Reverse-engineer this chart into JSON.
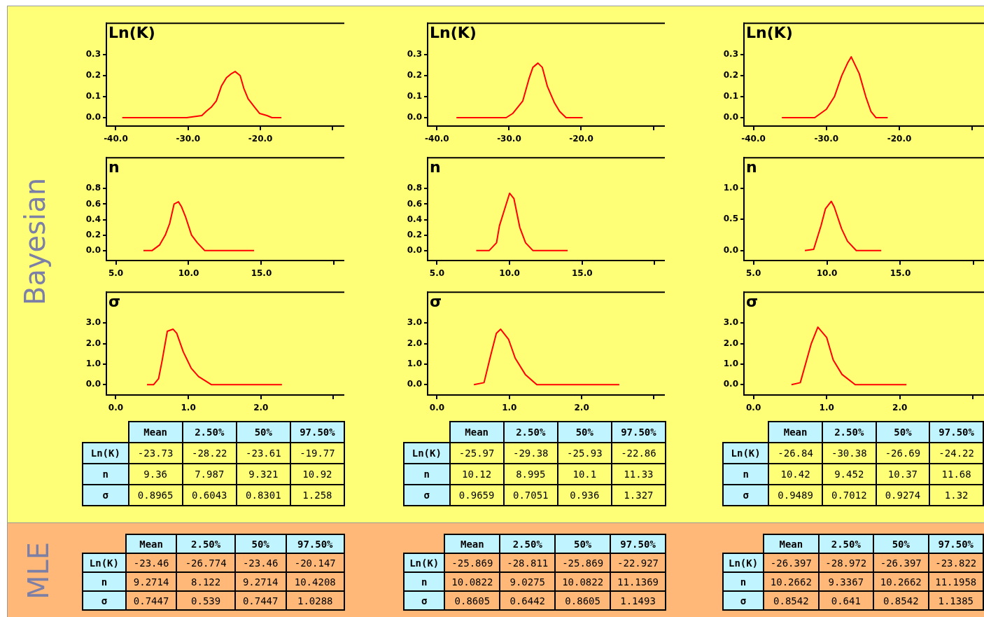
{
  "chart_data": [
    {
      "type": "other",
      "title": "Bayesian"
    },
    {
      "type": "line",
      "title": "Ln(K)",
      "color": "#ff0000",
      "marker": "none",
      "x": [
        -39.1,
        -30.2,
        -28.1,
        -27.5,
        -26.8,
        -26.1,
        -25.4,
        -24.7,
        -24.0,
        -23.5,
        -22.8,
        -22.3,
        -21.7,
        -20.8,
        -20.1,
        -19.1,
        -18.4,
        -17.1
      ],
      "values": [
        0,
        0,
        0.01,
        0.03,
        0.05,
        0.08,
        0.15,
        0.19,
        0.21,
        0.22,
        0.2,
        0.14,
        0.09,
        0.05,
        0.02,
        0.01,
        0,
        0
      ],
      "xlim": [
        -41.3,
        -8.4
      ],
      "ylim": [
        -0.04,
        0.45
      ],
      "xticks": [
        {
          "value": -40,
          "label": "-40.0"
        },
        {
          "value": -30,
          "label": "-30.0"
        },
        {
          "value": -20,
          "label": "-20.0"
        },
        {
          "value": -10,
          "label": null
        }
      ],
      "yticks": [
        {
          "value": 0,
          "label": "0.0"
        },
        {
          "value": 0.1,
          "label": "0.1"
        },
        {
          "value": 0.2,
          "label": "0.2"
        },
        {
          "value": 0.3,
          "label": "0.3"
        }
      ],
      "grid": false
    },
    {
      "type": "line",
      "title": "Ln(K)",
      "color": "#ff0000",
      "marker": "none",
      "x": [
        -37.3,
        -30.4,
        -29.5,
        -28.1,
        -27.2,
        -26.7,
        -26.0,
        -25.4,
        -24.7,
        -23.7,
        -23.0,
        -22.1,
        -19.8
      ],
      "values": [
        0,
        0,
        0.02,
        0.08,
        0.19,
        0.24,
        0.26,
        0.24,
        0.15,
        0.07,
        0.03,
        0,
        0
      ],
      "xlim": [
        -41.3,
        -8.4
      ],
      "ylim": [
        -0.04,
        0.45
      ],
      "xticks": [
        {
          "value": -40,
          "label": "-40.0"
        },
        {
          "value": -30,
          "label": "-30.0"
        },
        {
          "value": -20,
          "label": "-20.0"
        },
        {
          "value": -10,
          "label": null
        }
      ],
      "yticks": [
        {
          "value": 0,
          "label": "0.0"
        },
        {
          "value": 0.1,
          "label": "0.1"
        },
        {
          "value": 0.2,
          "label": "0.2"
        },
        {
          "value": 0.3,
          "label": "0.3"
        }
      ],
      "grid": false
    },
    {
      "type": "line",
      "title": "Ln(K)",
      "color": "#ff0000",
      "marker": "none",
      "x": [
        -36.1,
        -31.6,
        -30.0,
        -28.9,
        -27.9,
        -27.1,
        -26.6,
        -25.5,
        -24.6,
        -23.9,
        -23.2,
        -21.6
      ],
      "values": [
        0,
        0,
        0.04,
        0.1,
        0.2,
        0.26,
        0.29,
        0.21,
        0.1,
        0.03,
        0,
        0
      ],
      "xlim": [
        -41.3,
        -8.4
      ],
      "ylim": [
        -0.04,
        0.45
      ],
      "xticks": [
        {
          "value": -40,
          "label": "-40.0"
        },
        {
          "value": -30,
          "label": "-30.0"
        },
        {
          "value": -20,
          "label": "-20.0"
        },
        {
          "value": -10,
          "label": null
        }
      ],
      "yticks": [
        {
          "value": 0,
          "label": "0.0"
        },
        {
          "value": 0.1,
          "label": "0.1"
        },
        {
          "value": 0.2,
          "label": "0.2"
        },
        {
          "value": 0.3,
          "label": "0.3"
        }
      ],
      "grid": false
    },
    {
      "type": "line",
      "title": "n",
      "color": "#ff0000",
      "marker": "none",
      "x": [
        6.9,
        7.5,
        8.0,
        8.4,
        8.7,
        9.0,
        9.3,
        9.5,
        9.8,
        10.2,
        10.6,
        11.1,
        14.5
      ],
      "values": [
        0,
        0,
        0.07,
        0.2,
        0.35,
        0.6,
        0.63,
        0.57,
        0.43,
        0.2,
        0.1,
        0,
        0
      ],
      "xlim": [
        4.35,
        20.7
      ],
      "ylim": [
        -0.13,
        1.2
      ],
      "xticks": [
        {
          "value": 5,
          "label": "5.0"
        },
        {
          "value": 10,
          "label": "10.0"
        },
        {
          "value": 15,
          "label": "15.0"
        },
        {
          "value": 20,
          "label": null
        }
      ],
      "yticks": [
        {
          "value": 0,
          "label": "0.0"
        },
        {
          "value": 0.2,
          "label": "0.2"
        },
        {
          "value": 0.4,
          "label": "0.4"
        },
        {
          "value": 0.6,
          "label": "0.6"
        },
        {
          "value": 0.8,
          "label": "0.8"
        }
      ],
      "grid": false
    },
    {
      "type": "line",
      "title": "n",
      "color": "#ff0000",
      "marker": "none",
      "x": [
        7.7,
        8.6,
        9.1,
        9.3,
        9.6,
        10.0,
        10.3,
        10.7,
        11.1,
        11.6,
        14.0
      ],
      "values": [
        0,
        0,
        0.1,
        0.32,
        0.5,
        0.74,
        0.67,
        0.3,
        0.1,
        0,
        0
      ],
      "xlim": [
        4.35,
        20.7
      ],
      "ylim": [
        -0.13,
        1.2
      ],
      "xticks": [
        {
          "value": 5,
          "label": "5.0"
        },
        {
          "value": 10,
          "label": "10.0"
        },
        {
          "value": 15,
          "label": "15.0"
        },
        {
          "value": 20,
          "label": null
        }
      ],
      "yticks": [
        {
          "value": 0,
          "label": "0.0"
        },
        {
          "value": 0.2,
          "label": "0.2"
        },
        {
          "value": 0.4,
          "label": "0.4"
        },
        {
          "value": 0.6,
          "label": "0.6"
        },
        {
          "value": 0.8,
          "label": "0.8"
        }
      ],
      "grid": false
    },
    {
      "type": "line",
      "title": "n",
      "color": "#ff0000",
      "marker": "none",
      "x": [
        8.5,
        9.1,
        9.6,
        9.9,
        10.3,
        10.5,
        11.0,
        11.4,
        12.0,
        13.7
      ],
      "values": [
        0,
        0.02,
        0.4,
        0.67,
        0.79,
        0.7,
        0.35,
        0.15,
        0,
        0
      ],
      "xlim": [
        4.35,
        20.7
      ],
      "ylim": [
        -0.16,
        1.49
      ],
      "xticks": [
        {
          "value": 5,
          "label": "5.0"
        },
        {
          "value": 10,
          "label": "10.0"
        },
        {
          "value": 15,
          "label": "15.0"
        },
        {
          "value": 20,
          "label": null
        }
      ],
      "yticks": [
        {
          "value": 0,
          "label": "0.0"
        },
        {
          "value": 0.5,
          "label": "0.5"
        },
        {
          "value": 1,
          "label": "1.0"
        }
      ],
      "grid": false
    },
    {
      "type": "line",
      "title": "σ",
      "color": "#ff0000",
      "marker": "none",
      "x": [
        0.43,
        0.52,
        0.59,
        0.64,
        0.71,
        0.79,
        0.84,
        0.93,
        1.04,
        1.14,
        1.32,
        2.29
      ],
      "values": [
        0,
        0,
        0.3,
        1.2,
        2.6,
        2.7,
        2.5,
        1.6,
        0.8,
        0.4,
        0,
        0
      ],
      "xlim": [
        -0.13,
        3.15
      ],
      "ylim": [
        -0.5,
        4.5
      ],
      "xticks": [
        {
          "value": 0,
          "label": "0.0"
        },
        {
          "value": 1,
          "label": "1.0"
        },
        {
          "value": 2,
          "label": "2.0"
        },
        {
          "value": 3,
          "label": null
        }
      ],
      "yticks": [
        {
          "value": 0,
          "label": "0.0"
        },
        {
          "value": 1,
          "label": "1.0"
        },
        {
          "value": 2,
          "label": "2.0"
        },
        {
          "value": 3,
          "label": "3.0"
        }
      ],
      "grid": false
    },
    {
      "type": "line",
      "title": "σ",
      "color": "#ff0000",
      "marker": "none",
      "x": [
        0.51,
        0.65,
        0.74,
        0.82,
        0.88,
        0.99,
        1.08,
        1.22,
        1.38,
        2.52
      ],
      "values": [
        0,
        0.1,
        1.4,
        2.5,
        2.7,
        2.2,
        1.3,
        0.5,
        0,
        0
      ],
      "xlim": [
        -0.13,
        3.15
      ],
      "ylim": [
        -0.5,
        4.5
      ],
      "xticks": [
        {
          "value": 0,
          "label": "0.0"
        },
        {
          "value": 1,
          "label": "1.0"
        },
        {
          "value": 2,
          "label": "2.0"
        },
        {
          "value": 3,
          "label": null
        }
      ],
      "yticks": [
        {
          "value": 0,
          "label": "0.0"
        },
        {
          "value": 1,
          "label": "1.0"
        },
        {
          "value": 2,
          "label": "2.0"
        },
        {
          "value": 3,
          "label": "3.0"
        }
      ],
      "grid": false
    },
    {
      "type": "line",
      "title": "σ",
      "color": "#ff0000",
      "marker": "none",
      "x": [
        0.52,
        0.64,
        0.79,
        0.88,
        1.0,
        1.09,
        1.21,
        1.39,
        2.09
      ],
      "values": [
        0,
        0.1,
        2.0,
        2.8,
        2.3,
        1.2,
        0.5,
        0,
        0
      ],
      "xlim": [
        -0.13,
        3.15
      ],
      "ylim": [
        -0.5,
        4.5
      ],
      "xticks": [
        {
          "value": 0,
          "label": "0.0"
        },
        {
          "value": 1,
          "label": "1.0"
        },
        {
          "value": 2,
          "label": "2.0"
        },
        {
          "value": 3,
          "label": null
        }
      ],
      "yticks": [
        {
          "value": 0,
          "label": "0.0"
        },
        {
          "value": 1,
          "label": "1.0"
        },
        {
          "value": 2,
          "label": "2.0"
        },
        {
          "value": 3,
          "label": "3.0"
        }
      ],
      "grid": false
    },
    {
      "type": "other",
      "categories": [
        "Mean",
        "2.50%",
        "50%",
        "97.50%"
      ],
      "y_categories": [
        "Ln(K)",
        "n",
        "σ"
      ],
      "cell_labels": [
        [
          "-23.73",
          "-28.22",
          "-23.61",
          "-19.77"
        ],
        [
          "9.36",
          "7.987",
          "9.321",
          "10.92"
        ],
        [
          "0.8965",
          "0.6043",
          "0.8301",
          "1.258"
        ]
      ]
    },
    {
      "type": "other",
      "categories": [
        "Mean",
        "2.50%",
        "50%",
        "97.50%"
      ],
      "y_categories": [
        "Ln(K)",
        "n",
        "σ"
      ],
      "cell_labels": [
        [
          "-25.97",
          "-29.38",
          "-25.93",
          "-22.86"
        ],
        [
          "10.12",
          "8.995",
          "10.1",
          "11.33"
        ],
        [
          "0.9659",
          "0.7051",
          "0.936",
          "1.327"
        ]
      ]
    },
    {
      "type": "other",
      "categories": [
        "Mean",
        "2.50%",
        "50%",
        "97.50%"
      ],
      "y_categories": [
        "Ln(K)",
        "n",
        "σ"
      ],
      "cell_labels": [
        [
          "-26.84",
          "-30.38",
          "-26.69",
          "-24.22"
        ],
        [
          "10.42",
          "9.452",
          "10.37",
          "11.68"
        ],
        [
          "0.9489",
          "0.7012",
          "0.9274",
          "1.32"
        ]
      ]
    },
    {
      "type": "other",
      "title": "MLE"
    },
    {
      "type": "other",
      "categories": [
        "Mean",
        "2.50%",
        "50%",
        "97.50%"
      ],
      "y_categories": [
        "Ln(K)",
        "n",
        "σ"
      ],
      "cell_labels": [
        [
          "-23.46",
          "-26.774",
          "-23.46",
          "-20.147"
        ],
        [
          "9.2714",
          "8.122",
          "9.2714",
          "10.4208"
        ],
        [
          "0.7447",
          "0.539",
          "0.7447",
          "1.0288"
        ]
      ]
    },
    {
      "type": "other",
      "categories": [
        "Mean",
        "2.50%",
        "50%",
        "97.50%"
      ],
      "y_categories": [
        "Ln(K)",
        "n",
        "σ"
      ],
      "cell_labels": [
        [
          "-25.869",
          "-28.811",
          "-25.869",
          "-22.927"
        ],
        [
          "10.0822",
          "9.0275",
          "10.0822",
          "11.1369"
        ],
        [
          "0.8605",
          "0.6442",
          "0.8605",
          "1.1493"
        ]
      ]
    },
    {
      "type": "other",
      "categories": [
        "Mean",
        "2.50%",
        "50%",
        "97.50%"
      ],
      "y_categories": [
        "Ln(K)",
        "n",
        "σ"
      ],
      "cell_labels": [
        [
          "-26.397",
          "-28.972",
          "-26.397",
          "-23.822"
        ],
        [
          "10.2662",
          "9.3367",
          "10.2662",
          "11.1958"
        ],
        [
          "0.8542",
          "0.641",
          "0.8542",
          "1.1385"
        ]
      ]
    }
  ]
}
